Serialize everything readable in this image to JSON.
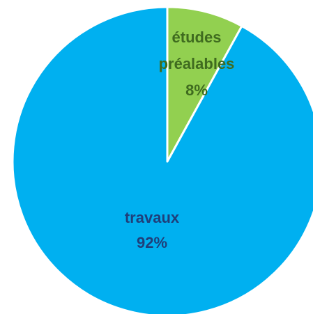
{
  "chart_data": {
    "type": "pie",
    "slices": [
      {
        "label": "études\npréalables",
        "value": 8,
        "value_label": "8%",
        "color": "#92d050",
        "text_color": "#3f6b1f"
      },
      {
        "label": "travaux",
        "value": 92,
        "value_label": "92%",
        "color": "#00b0f0",
        "text_color": "#1f3f7a"
      }
    ],
    "start": "top",
    "direction": "clockwise",
    "slice_border_color": "#ffffff"
  }
}
